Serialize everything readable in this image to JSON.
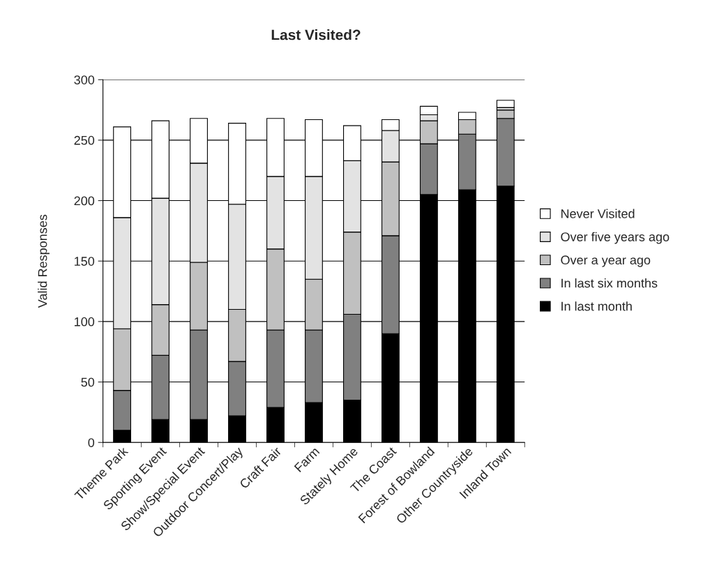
{
  "chart_data": {
    "type": "bar",
    "title": "Last Visited?",
    "ylabel": "Valid Responses",
    "categories": [
      "Theme Park",
      "Sporting Event",
      "Show/Special Event",
      "Outdoor Concert/Play",
      "Craft Fair",
      "Farm",
      "Stately Home",
      "The Coast",
      "Forest of Bowland",
      "Other Countryside",
      "Inland Town"
    ],
    "stacked": true,
    "series": [
      {
        "name": "In last month",
        "color": "#000000",
        "values": [
          10,
          19,
          19,
          22,
          29,
          33,
          35,
          90,
          205,
          209,
          212
        ]
      },
      {
        "name": "In last six months",
        "color": "#808080",
        "values": [
          33,
          53,
          74,
          45,
          64,
          60,
          71,
          81,
          42,
          46,
          56
        ]
      },
      {
        "name": "Over a year ago",
        "color": "#c0c0c0",
        "values": [
          51,
          42,
          56,
          43,
          67,
          42,
          68,
          61,
          19,
          12,
          7
        ]
      },
      {
        "name": "Over five years ago",
        "color": "#e3e3e3",
        "values": [
          92,
          88,
          82,
          87,
          60,
          85,
          59,
          26,
          5,
          null,
          2
        ]
      },
      {
        "name": "Never Visited",
        "color": "#ffffff",
        "values": [
          75,
          64,
          37,
          67,
          48,
          47,
          29,
          9,
          7,
          6,
          6
        ]
      }
    ],
    "ylim": [
      0,
      300
    ],
    "yticks": [
      0,
      50,
      100,
      150,
      200,
      250,
      300
    ],
    "grid": "y",
    "legend": "right"
  }
}
